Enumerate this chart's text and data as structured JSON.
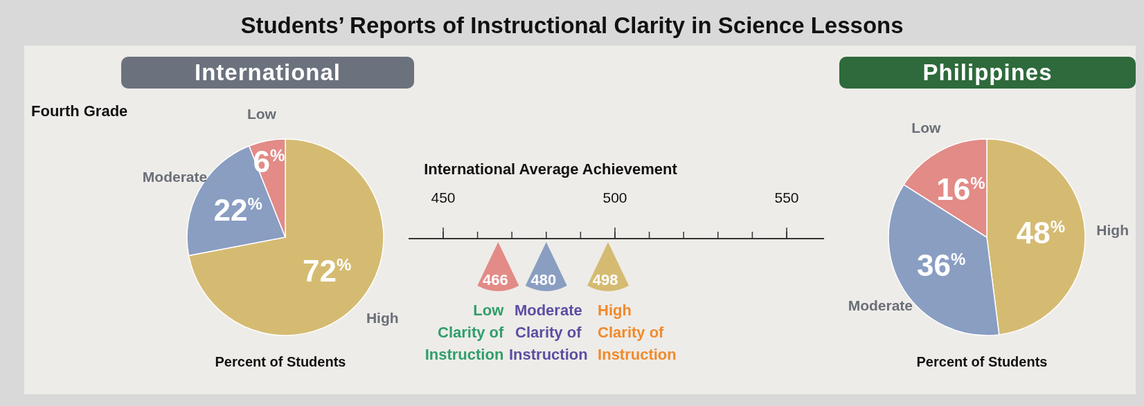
{
  "chart_data": [
    {
      "type": "other",
      "title": "Students’ Reports of Instructional Clarity in Science Lessons"
    },
    {
      "type": "pie",
      "title": "International",
      "subtitle": "Fourth Grade",
      "annotations": [
        "Percent of Students"
      ],
      "categories": [
        "High",
        "Moderate",
        "Low"
      ],
      "values": [
        72,
        22,
        6
      ],
      "colors": [
        "#d5bb72",
        "#8a9ec2",
        "#e28b87"
      ],
      "data_labels": true,
      "value_labels": [
        "72%",
        "22%",
        "6%"
      ]
    },
    {
      "type": "other",
      "title": "International Average Achievement",
      "data_labels": true,
      "categories": [
        "Low Clarity of Instruction",
        "Moderate Clarity of Instruction",
        "High Clarity of Instruction"
      ],
      "values": [
        466,
        480,
        498
      ],
      "colors": [
        "#e28b87",
        "#8a9ec2",
        "#d5bb72"
      ],
      "annotations": [
        "450",
        "500",
        "550"
      ]
    },
    {
      "type": "pie",
      "title": "Philippines",
      "annotations": [
        "Percent of Students"
      ],
      "categories": [
        "High",
        "Moderate",
        "Low"
      ],
      "values": [
        48,
        36,
        16
      ],
      "colors": [
        "#d5bb72",
        "#8a9ec2",
        "#e28b87"
      ],
      "data_labels": true,
      "value_labels": [
        "48%",
        "36%",
        "16%"
      ]
    }
  ]
}
